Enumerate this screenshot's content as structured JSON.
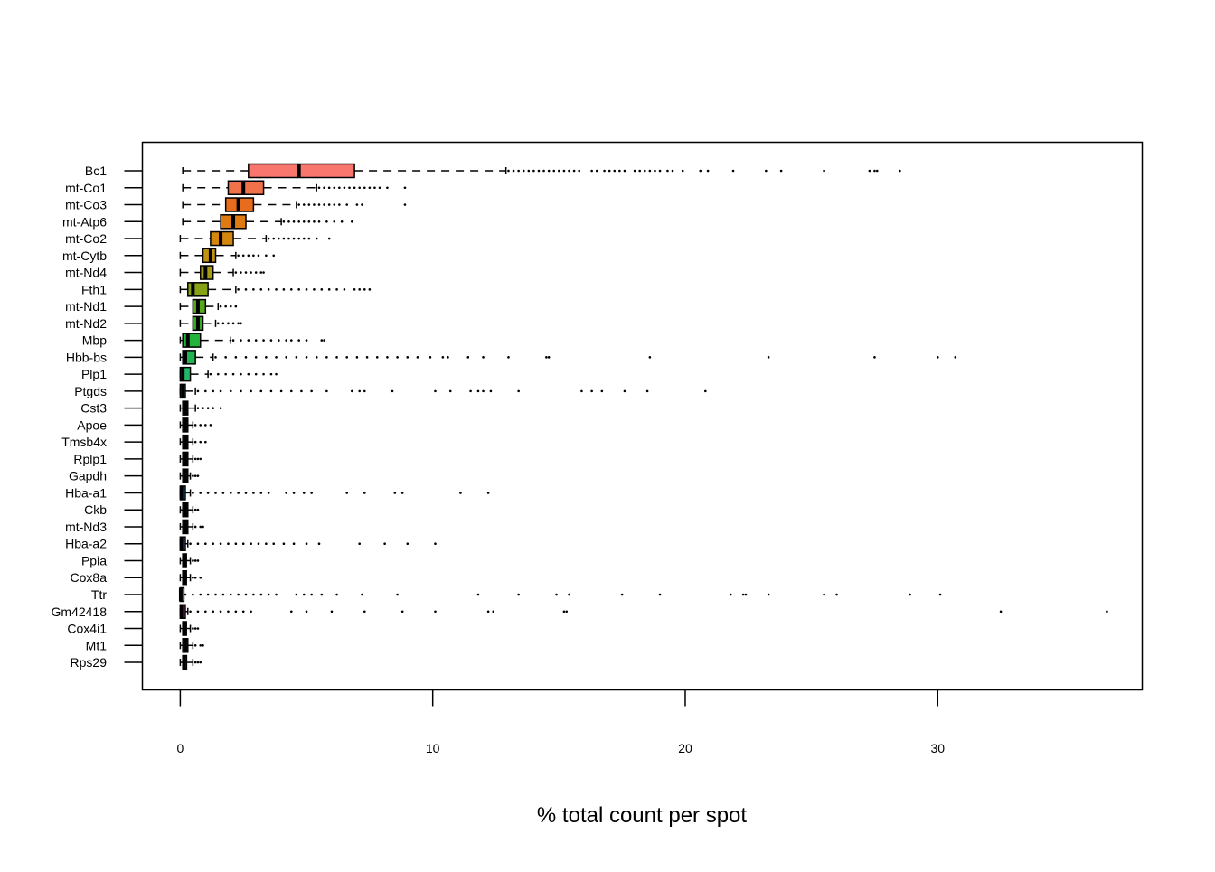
{
  "chart_data": {
    "type": "boxplot",
    "orientation": "horizontal",
    "title": "",
    "xlabel": "% total count per spot",
    "ylabel": "",
    "xlim": [
      -1.5,
      38.1
    ],
    "x_ticks": [
      0,
      10,
      20,
      30
    ],
    "grid": false,
    "legend": "none",
    "categories": [
      "Bc1",
      "mt-Co1",
      "mt-Co3",
      "mt-Atp6",
      "mt-Co2",
      "mt-Cytb",
      "mt-Nd4",
      "Fth1",
      "mt-Nd1",
      "mt-Nd2",
      "Mbp",
      "Hbb-bs",
      "Plp1",
      "Ptgds",
      "Cst3",
      "Apoe",
      "Tmsb4x",
      "Rplp1",
      "Gapdh",
      "Hba-a1",
      "Ckb",
      "mt-Nd3",
      "Hba-a2",
      "Ppia",
      "Cox8a",
      "Ttr",
      "Gm42418",
      "Cox4i1",
      "Mt1",
      "Rps29"
    ],
    "series": [
      {
        "min": 0.1,
        "q1": 2.7,
        "median": 4.7,
        "q3": 6.9,
        "whisker_hi": 12.9,
        "color": "#F8766D",
        "outliers": [
          13,
          13.2,
          13.4,
          13.6,
          13.8,
          14,
          14.2,
          14.4,
          14.6,
          14.8,
          15,
          15.2,
          15.4,
          15.6,
          15.8,
          16.3,
          16.5,
          16.8,
          17,
          17.2,
          17.4,
          17.6,
          18,
          18.2,
          18.4,
          18.6,
          18.8,
          19,
          19.3,
          19.5,
          19.9,
          20.6,
          20.9,
          21.9,
          23.2,
          23.8,
          25.5,
          27.3,
          27.5,
          27.6,
          28.5
        ]
      },
      {
        "min": 0.1,
        "q1": 1.9,
        "median": 2.5,
        "q3": 3.3,
        "whisker_hi": 5.4,
        "color": "#F0724B",
        "outliers": [
          5.5,
          5.7,
          5.9,
          6.1,
          6.3,
          6.5,
          6.7,
          6.9,
          7.1,
          7.3,
          7.5,
          7.7,
          7.9,
          8.2,
          8.9
        ]
      },
      {
        "min": 0.1,
        "q1": 1.8,
        "median": 2.3,
        "q3": 2.9,
        "whisker_hi": 4.6,
        "color": "#E86C1E",
        "outliers": [
          4.7,
          4.9,
          5.1,
          5.3,
          5.5,
          5.7,
          5.9,
          6.1,
          6.3,
          6.6,
          7,
          7.2,
          8.9
        ]
      },
      {
        "min": 0.1,
        "q1": 1.6,
        "median": 2.1,
        "q3": 2.6,
        "whisker_hi": 4,
        "color": "#DE7A12",
        "outliers": [
          4.1,
          4.3,
          4.5,
          4.7,
          4.9,
          5.1,
          5.3,
          5.5,
          5.8,
          6.1,
          6.4,
          6.8
        ]
      },
      {
        "min": 0,
        "q1": 1.2,
        "median": 1.6,
        "q3": 2.1,
        "whisker_hi": 3.4,
        "color": "#D4870D",
        "outliers": [
          3.5,
          3.7,
          3.9,
          4.1,
          4.3,
          4.5,
          4.7,
          4.9,
          5.1,
          5.4,
          5.9
        ]
      },
      {
        "min": 0,
        "q1": 0.9,
        "median": 1.2,
        "q3": 1.4,
        "whisker_hi": 2.2,
        "color": "#C29312",
        "outliers": [
          2.3,
          2.5,
          2.7,
          2.9,
          3.1,
          3.4,
          3.7
        ]
      },
      {
        "min": 0,
        "q1": 0.8,
        "median": 1.0,
        "q3": 1.3,
        "whisker_hi": 2.1,
        "color": "#A69A12",
        "outliers": [
          2.2,
          2.4,
          2.6,
          2.8,
          3,
          3.2,
          3.3
        ]
      },
      {
        "min": 0,
        "q1": 0.3,
        "median": 0.5,
        "q3": 1.1,
        "whisker_hi": 2.2,
        "color": "#86A316",
        "outliers": [
          2.3,
          2.6,
          2.9,
          3.2,
          3.5,
          3.8,
          4.1,
          4.4,
          4.7,
          5,
          5.3,
          5.6,
          5.9,
          6.2,
          6.5,
          6.9,
          7.1,
          7.3,
          7.5
        ]
      },
      {
        "min": 0,
        "q1": 0.5,
        "median": 0.7,
        "q3": 1.0,
        "whisker_hi": 1.5,
        "color": "#59A81A",
        "outliers": [
          1.6,
          1.8,
          2,
          2.2
        ]
      },
      {
        "min": 0,
        "q1": 0.5,
        "median": 0.7,
        "q3": 0.9,
        "whisker_hi": 1.4,
        "color": "#33AD22",
        "outliers": [
          1.5,
          1.7,
          1.9,
          2.1,
          2.3,
          2.4
        ]
      },
      {
        "min": 0,
        "q1": 0.1,
        "median": 0.3,
        "q3": 0.8,
        "whisker_hi": 2.0,
        "color": "#23B23A",
        "outliers": [
          2.1,
          2.4,
          2.7,
          3,
          3.3,
          3.6,
          3.9,
          4.2,
          4.4,
          4.7,
          5,
          5.6,
          5.7
        ]
      },
      {
        "min": 0,
        "q1": 0.1,
        "median": 0.2,
        "q3": 0.6,
        "whisker_hi": 1.3,
        "color": "#22B450",
        "outliers": [
          1.4,
          1.8,
          2.2,
          2.6,
          3,
          3.4,
          3.8,
          4.2,
          4.6,
          5,
          5.4,
          5.8,
          6.2,
          6.6,
          7,
          7.4,
          7.8,
          8.2,
          8.6,
          9,
          9.4,
          9.9,
          10.4,
          10.6,
          11.4,
          12,
          13,
          14.5,
          14.6,
          18.6,
          23.3,
          27.5,
          30,
          30.7
        ]
      },
      {
        "min": 0,
        "q1": 0,
        "median": 0.1,
        "q3": 0.4,
        "whisker_hi": 1.1,
        "color": "#22B667",
        "outliers": [
          1.2,
          1.5,
          1.8,
          2.1,
          2.4,
          2.7,
          3,
          3.3,
          3.6,
          3.8
        ]
      },
      {
        "min": 0,
        "q1": 0,
        "median": 0.1,
        "q3": 0.2,
        "whisker_hi": 0.6,
        "color": "#22B87E",
        "outliers": [
          0.7,
          1,
          1.3,
          1.6,
          2,
          2.4,
          2.8,
          3.2,
          3.6,
          4,
          4.4,
          4.8,
          5.2,
          5.8,
          6.8,
          7.1,
          7.3,
          8.4,
          10.1,
          10.7,
          11.5,
          11.8,
          12,
          12.3,
          13.4,
          15.9,
          16.3,
          16.7,
          17.6,
          18.5,
          20.8
        ]
      },
      {
        "min": 0,
        "q1": 0.1,
        "median": 0.2,
        "q3": 0.3,
        "whisker_hi": 0.6,
        "color": "#22B993",
        "outliers": [
          0.7,
          0.9,
          1.1,
          1.3,
          1.6
        ]
      },
      {
        "min": 0,
        "q1": 0.1,
        "median": 0.2,
        "q3": 0.3,
        "whisker_hi": 0.5,
        "color": "#22B9A8",
        "outliers": [
          0.6,
          0.8,
          1,
          1.2
        ]
      },
      {
        "min": 0,
        "q1": 0.1,
        "median": 0.2,
        "q3": 0.3,
        "whisker_hi": 0.5,
        "color": "#22B8BC",
        "outliers": [
          0.6,
          0.8,
          1
        ]
      },
      {
        "min": 0,
        "q1": 0.1,
        "median": 0.2,
        "q3": 0.3,
        "whisker_hi": 0.5,
        "color": "#22B3CE",
        "outliers": [
          0.6,
          0.7,
          0.8
        ]
      },
      {
        "min": 0,
        "q1": 0.1,
        "median": 0.2,
        "q3": 0.3,
        "whisker_hi": 0.4,
        "color": "#22ACDD",
        "outliers": [
          0.5,
          0.6,
          0.7
        ]
      },
      {
        "min": 0,
        "q1": 0,
        "median": 0.05,
        "q3": 0.2,
        "whisker_hi": 0.4,
        "color": "#29A2E8",
        "outliers": [
          0.5,
          0.8,
          1.1,
          1.4,
          1.7,
          2,
          2.3,
          2.6,
          2.9,
          3.2,
          3.5,
          4.2,
          4.5,
          4.9,
          5.2,
          6.6,
          7.3,
          8.5,
          8.8,
          11.1,
          12.2
        ]
      },
      {
        "min": 0,
        "q1": 0.1,
        "median": 0.2,
        "q3": 0.3,
        "whisker_hi": 0.5,
        "color": "#4598ED",
        "outliers": [
          0.6,
          0.7
        ]
      },
      {
        "min": 0,
        "q1": 0.1,
        "median": 0.2,
        "q3": 0.3,
        "whisker_hi": 0.5,
        "color": "#648CF1",
        "outliers": [
          0.6,
          0.8,
          0.9
        ]
      },
      {
        "min": 0,
        "q1": 0,
        "median": 0.05,
        "q3": 0.2,
        "whisker_hi": 0.3,
        "color": "#8280F2",
        "outliers": [
          0.4,
          0.7,
          1,
          1.3,
          1.6,
          1.9,
          2.2,
          2.5,
          2.8,
          3.1,
          3.4,
          3.7,
          4.1,
          4.5,
          5,
          5.5,
          7.1,
          8.1,
          9,
          10.1
        ]
      },
      {
        "min": 0,
        "q1": 0.1,
        "median": 0.15,
        "q3": 0.2,
        "whisker_hi": 0.4,
        "color": "#9F75F0",
        "outliers": [
          0.5,
          0.6,
          0.7
        ]
      },
      {
        "min": 0,
        "q1": 0.1,
        "median": 0.15,
        "q3": 0.2,
        "whisker_hi": 0.4,
        "color": "#B86BEB",
        "outliers": [
          0.5,
          0.6,
          0.8
        ]
      },
      {
        "min": 0,
        "q1": 0,
        "median": 0.02,
        "q3": 0.05,
        "whisker_hi": 0.1,
        "color": "#CE62E2",
        "outliers": [
          0.2,
          0.5,
          0.8,
          1.1,
          1.4,
          1.7,
          2,
          2.3,
          2.6,
          2.9,
          3.2,
          3.5,
          3.8,
          4.6,
          4.9,
          5.2,
          5.6,
          6.2,
          7.2,
          8.6,
          11.8,
          13.4,
          14.9,
          15.4,
          17.5,
          19,
          21.8,
          22.3,
          22.4,
          23.3,
          25.5,
          26,
          28.9,
          30.1
        ]
      },
      {
        "min": 0,
        "q1": 0,
        "median": 0.05,
        "q3": 0.2,
        "whisker_hi": 0.3,
        "color": "#DE5CD5",
        "outliers": [
          0.4,
          0.7,
          1,
          1.3,
          1.6,
          1.9,
          2.2,
          2.5,
          2.8,
          4.4,
          5,
          6,
          7.3,
          8.8,
          10.1,
          12.2,
          12.4,
          15.2,
          15.3,
          32.5,
          36.7
        ]
      },
      {
        "min": 0,
        "q1": 0.1,
        "median": 0.15,
        "q3": 0.2,
        "whisker_hi": 0.4,
        "color": "#EB5CC4",
        "outliers": [
          0.5,
          0.6,
          0.7
        ]
      },
      {
        "min": 0,
        "q1": 0.1,
        "median": 0.2,
        "q3": 0.3,
        "whisker_hi": 0.5,
        "color": "#F45FB0",
        "outliers": [
          0.6,
          0.8,
          0.9
        ]
      },
      {
        "min": 0,
        "q1": 0.1,
        "median": 0.15,
        "q3": 0.25,
        "whisker_hi": 0.5,
        "color": "#FB6598",
        "outliers": [
          0.6,
          0.7,
          0.8
        ]
      }
    ]
  }
}
